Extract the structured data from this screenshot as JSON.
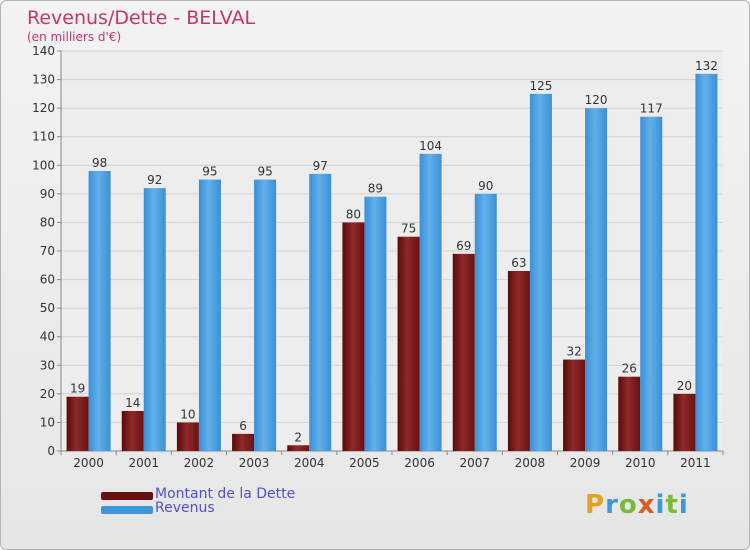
{
  "header": {
    "title": "Revenus/Dette - BELVAL",
    "subtitle": "(en milliers d'€)"
  },
  "chart_data": {
    "type": "bar",
    "categories": [
      "2000",
      "2001",
      "2002",
      "2003",
      "2004",
      "2005",
      "2006",
      "2007",
      "2008",
      "2009",
      "2010",
      "2011"
    ],
    "series": [
      {
        "name": "Montant de la Dette",
        "color": "#7a1a1a",
        "values": [
          19,
          14,
          10,
          6,
          2,
          80,
          75,
          69,
          63,
          32,
          26,
          20
        ]
      },
      {
        "name": "Revenus",
        "color": "#4fa0e0",
        "values": [
          98,
          92,
          95,
          95,
          97,
          89,
          104,
          90,
          125,
          120,
          117,
          132
        ]
      }
    ],
    "yticks": [
      0,
      10,
      20,
      30,
      40,
      50,
      60,
      70,
      80,
      90,
      100,
      110,
      120,
      130,
      140
    ],
    "ylim": [
      0,
      140
    ],
    "grid": true,
    "legend_position": "bottom-left"
  },
  "logo": {
    "letters": [
      "P",
      "r",
      "o",
      "x",
      "i",
      "t",
      "i"
    ],
    "colors": [
      "#e8a020",
      "#3a9ad9",
      "#7cb83a",
      "#e05a20",
      "#3a9ad9",
      "#7cb83a",
      "#3a9ad9"
    ]
  }
}
